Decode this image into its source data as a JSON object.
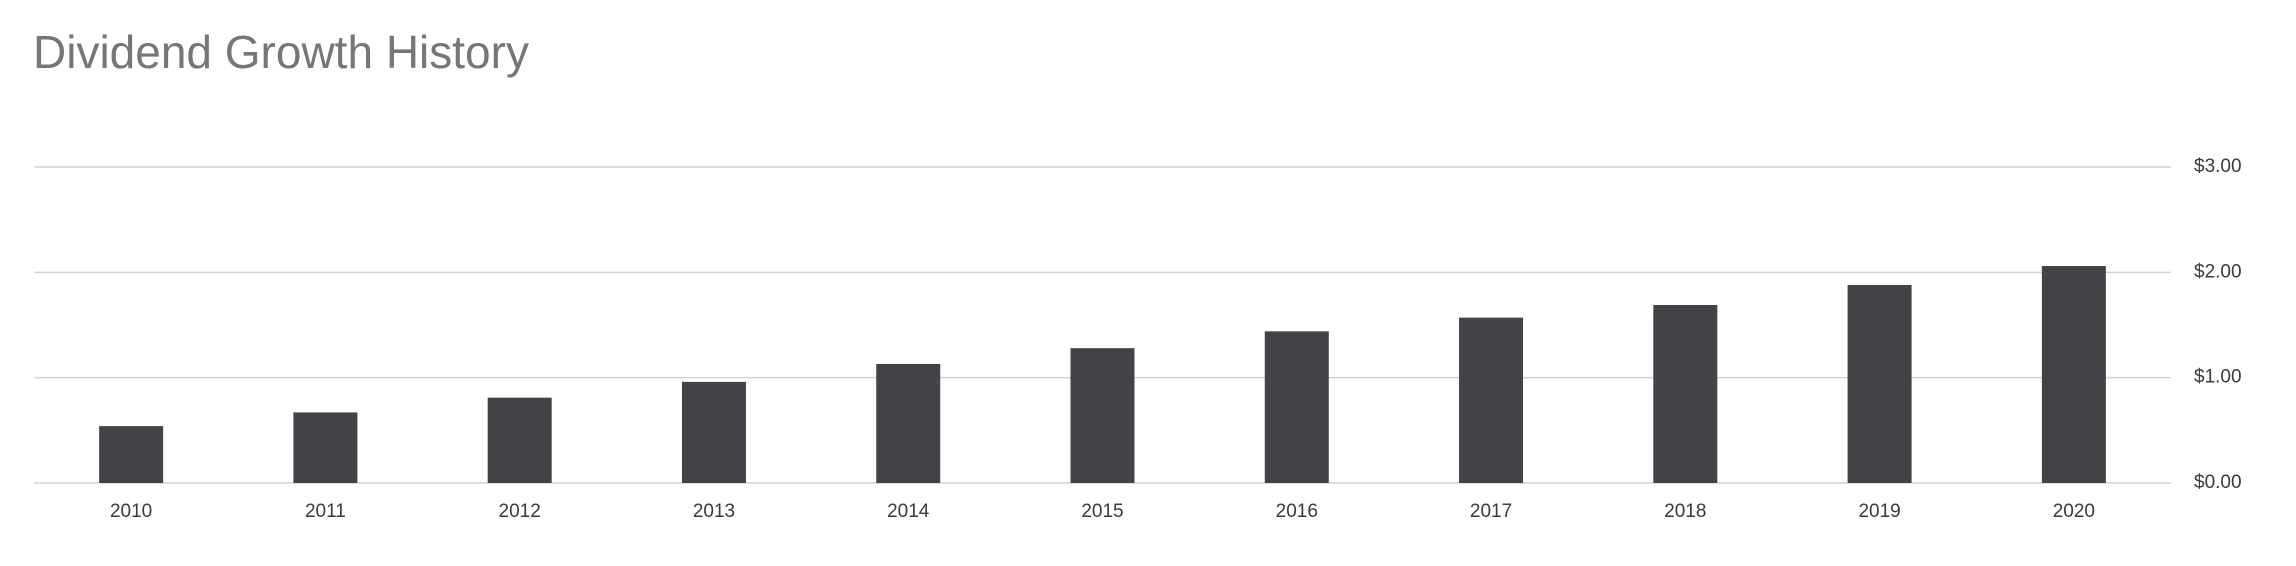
{
  "chart_data": {
    "type": "bar",
    "title": "Dividend Growth History",
    "categories": [
      "2010",
      "2011",
      "2012",
      "2013",
      "2014",
      "2015",
      "2016",
      "2017",
      "2018",
      "2019",
      "2020"
    ],
    "values": [
      0.54,
      0.67,
      0.81,
      0.96,
      1.13,
      1.28,
      1.44,
      1.57,
      1.69,
      1.88,
      2.06
    ],
    "color": "#434246",
    "ylim": [
      0,
      3
    ],
    "yticks": [
      {
        "value": 0,
        "label": "$0.00"
      },
      {
        "value": 1,
        "label": "$1.00"
      },
      {
        "value": 2,
        "label": "$2.00"
      },
      {
        "value": 3,
        "label": "$3.00"
      }
    ],
    "grid": true,
    "y_axis_side": "right"
  }
}
